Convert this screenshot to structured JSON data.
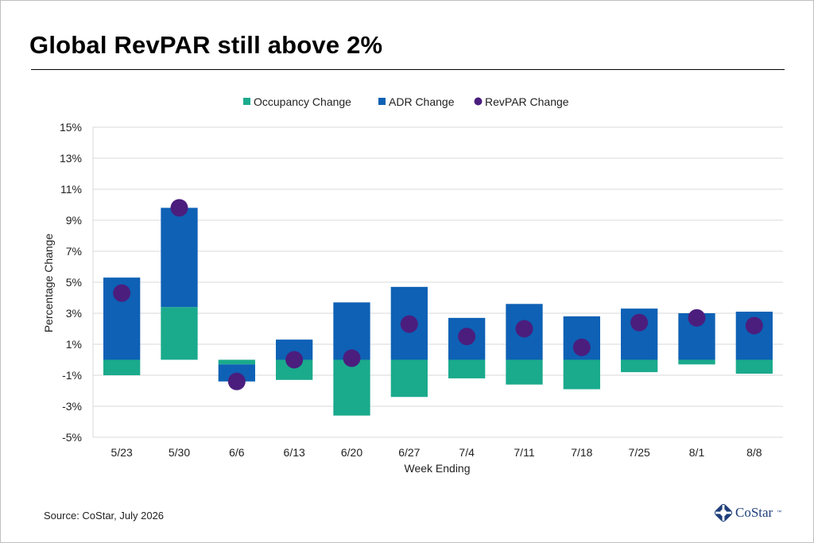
{
  "title": "Global RevPAR still above 2%",
  "source": "Source: CoStar, July 2026",
  "logo": {
    "text": "CoStar",
    "tm": "™"
  },
  "colors": {
    "occupancy": "#1aaa8c",
    "adr": "#0e61b5",
    "revpar": "#4b1e7e",
    "grid": "#d9d9d9"
  },
  "chart_data": {
    "type": "bar",
    "stacked": true,
    "categories": [
      "5/23",
      "5/30",
      "6/6",
      "6/13",
      "6/20",
      "6/27",
      "7/4",
      "7/11",
      "7/18",
      "7/25",
      "8/1",
      "8/8"
    ],
    "series": [
      {
        "name": "Occupancy Change",
        "kind": "bar",
        "values": [
          -1.0,
          3.4,
          -0.3,
          -1.3,
          -3.6,
          -2.4,
          -1.2,
          -1.6,
          -1.9,
          -0.8,
          -0.3,
          -0.9
        ]
      },
      {
        "name": "ADR Change",
        "kind": "bar",
        "values": [
          5.3,
          6.4,
          -1.1,
          1.3,
          3.7,
          4.7,
          2.7,
          3.6,
          2.8,
          3.3,
          3.0,
          3.1
        ]
      },
      {
        "name": "RevPAR Change",
        "kind": "point",
        "values": [
          4.3,
          9.8,
          -1.4,
          0.0,
          0.1,
          2.3,
          1.5,
          2.0,
          0.8,
          2.4,
          2.7,
          2.2
        ]
      }
    ],
    "xlabel": "Week Ending",
    "ylabel": "Percentage Change",
    "ylim": [
      -5,
      15
    ],
    "yticks": [
      15,
      13,
      11,
      9,
      7,
      5,
      3,
      1,
      -1,
      -3,
      -5
    ],
    "ytick_labels": [
      "15%",
      "13%",
      "11%",
      "9%",
      "7%",
      "5%",
      "3%",
      "1%",
      "-1%",
      "-3%",
      "-5%"
    ],
    "grid": true,
    "legend": "top"
  }
}
